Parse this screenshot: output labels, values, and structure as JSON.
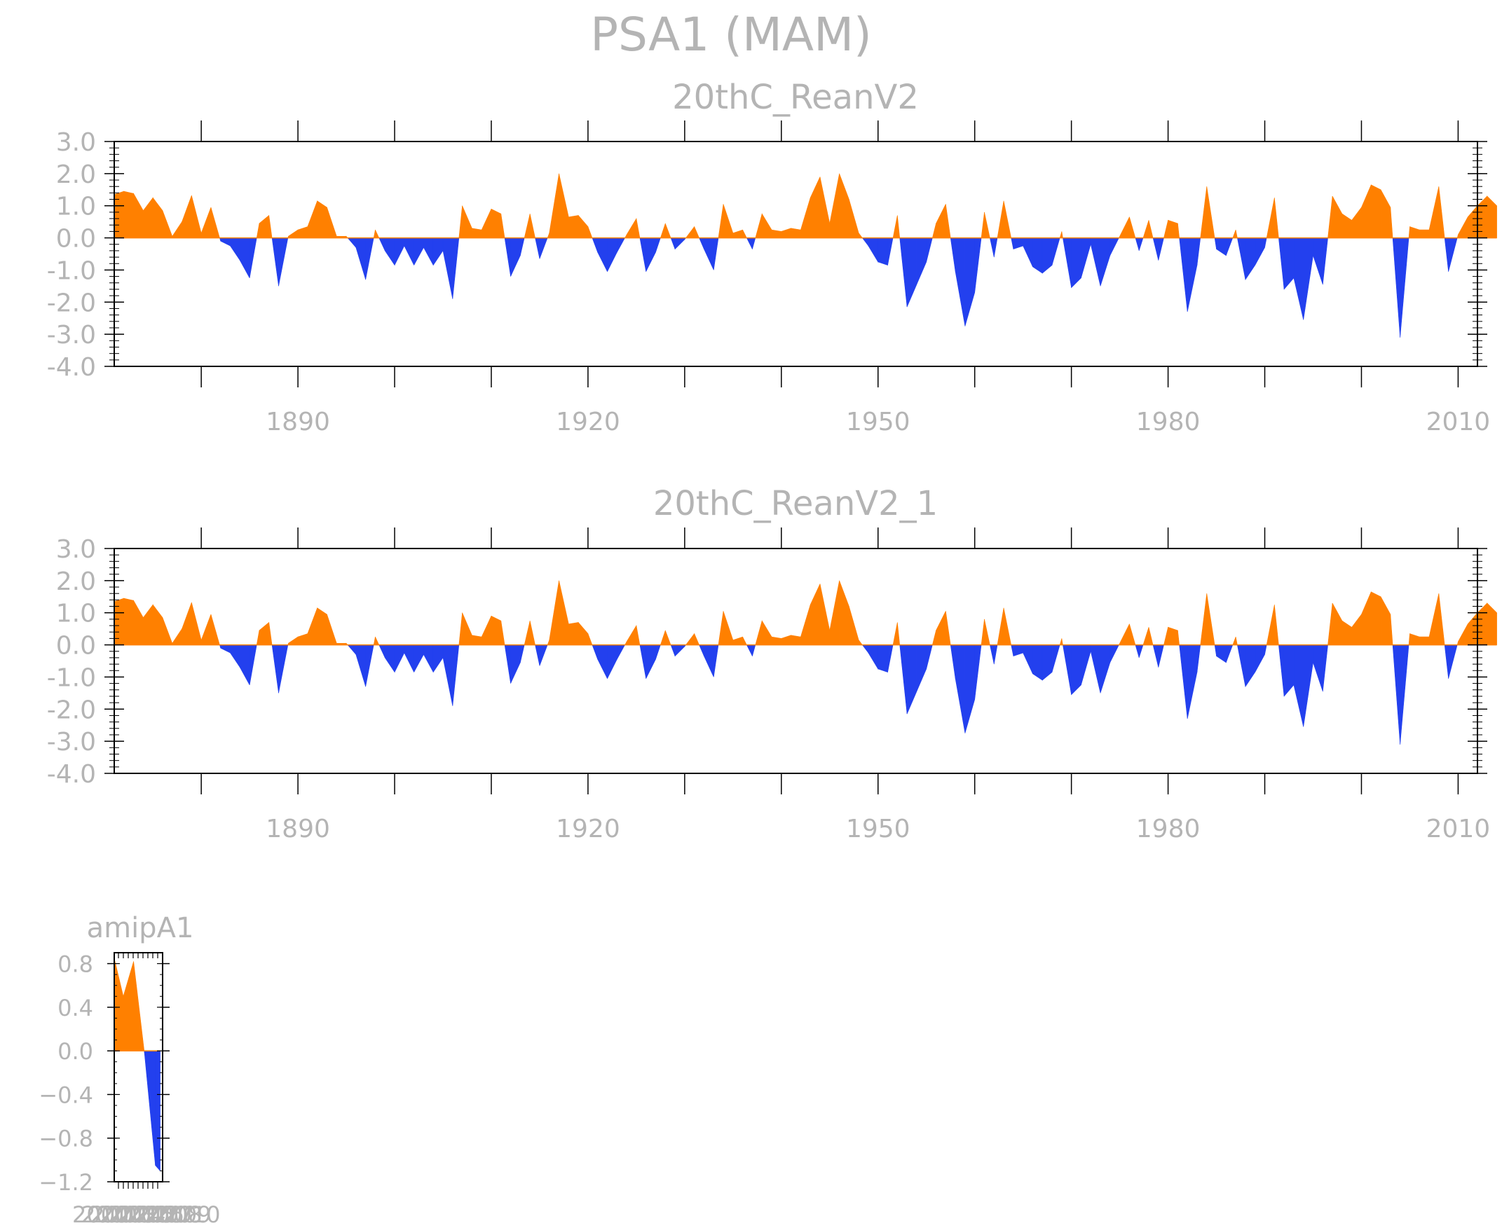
{
  "title": "PSA1 (MAM)",
  "colors": {
    "positive": "#ff8000",
    "negative": "#2340ee",
    "axis": "#000000",
    "text": "#b4b4b4"
  },
  "chart_data": [
    {
      "type": "area",
      "title": "20thC_ReanV2",
      "xlim": [
        1871,
        2012
      ],
      "ylim": [
        -4.0,
        3.0
      ],
      "ytick_labels": [
        "3.0",
        "2.0",
        "1.0",
        "0.0",
        "-1.0",
        "-2.0",
        "-3.0",
        "-4.0"
      ],
      "xtick_labels": [
        "1890",
        "1920",
        "1950",
        "1980",
        "2010"
      ],
      "x_start": 1871,
      "values": [
        1.35,
        1.45,
        1.38,
        0.85,
        1.25,
        0.85,
        0.05,
        0.5,
        1.32,
        0.15,
        0.95,
        -0.1,
        -0.25,
        -0.7,
        -1.25,
        0.45,
        0.7,
        -1.5,
        0.05,
        0.25,
        0.35,
        1.15,
        0.95,
        0.05,
        0.05,
        -0.3,
        -1.3,
        0.25,
        -0.4,
        -0.85,
        -0.25,
        -0.85,
        -0.3,
        -0.85,
        -0.4,
        -1.9,
        1.0,
        0.3,
        0.25,
        0.9,
        0.75,
        -1.2,
        -0.55,
        0.75,
        -0.65,
        0.15,
        2.0,
        0.65,
        0.7,
        0.35,
        -0.45,
        -1.05,
        -0.45,
        0.1,
        0.6,
        -1.05,
        -0.45,
        0.45,
        -0.35,
        -0.05,
        0.35,
        -0.35,
        -1.0,
        1.05,
        0.15,
        0.25,
        -0.35,
        0.75,
        0.25,
        0.2,
        0.3,
        0.25,
        1.25,
        1.9,
        0.45,
        2.0,
        1.2,
        0.15,
        -0.25,
        -0.75,
        -0.85,
        0.7,
        -2.15,
        -1.45,
        -0.75,
        0.45,
        1.05,
        -1.05,
        -2.75,
        -1.7,
        0.8,
        -0.6,
        1.15,
        -0.35,
        -0.25,
        -0.9,
        -1.1,
        -0.85,
        0.2,
        -1.55,
        -1.25,
        -0.2,
        -1.5,
        -0.55,
        0.05,
        0.65,
        -0.4,
        0.55,
        -0.7,
        0.55,
        0.45,
        -2.3,
        -0.85,
        1.6,
        -0.35,
        -0.55,
        0.25,
        -1.3,
        -0.85,
        -0.3,
        1.25,
        -1.6,
        -1.25,
        -2.55,
        -0.55,
        -1.45,
        1.3,
        0.75,
        0.55,
        0.95,
        1.65,
        1.5,
        0.95,
        -3.1,
        0.35,
        0.25,
        0.25,
        1.6,
        -1.05,
        0.1,
        0.65,
        1.0,
        1.3,
        1.0
      ]
    },
    {
      "type": "area",
      "title": "20thC_ReanV2_1",
      "xlim": [
        1871,
        2012
      ],
      "ylim": [
        -4.0,
        3.0
      ],
      "ytick_labels": [
        "3.0",
        "2.0",
        "1.0",
        "0.0",
        "-1.0",
        "-2.0",
        "-3.0",
        "-4.0"
      ],
      "xtick_labels": [
        "1890",
        "1920",
        "1950",
        "1980",
        "2010"
      ],
      "x_start": 1871,
      "values": [
        1.35,
        1.45,
        1.38,
        0.85,
        1.25,
        0.85,
        0.05,
        0.5,
        1.32,
        0.15,
        0.95,
        -0.1,
        -0.25,
        -0.7,
        -1.25,
        0.45,
        0.7,
        -1.5,
        0.05,
        0.25,
        0.35,
        1.15,
        0.95,
        0.05,
        0.05,
        -0.3,
        -1.3,
        0.25,
        -0.4,
        -0.85,
        -0.25,
        -0.85,
        -0.3,
        -0.85,
        -0.4,
        -1.9,
        1.0,
        0.3,
        0.25,
        0.9,
        0.75,
        -1.2,
        -0.55,
        0.75,
        -0.65,
        0.15,
        2.0,
        0.65,
        0.7,
        0.35,
        -0.45,
        -1.05,
        -0.45,
        0.1,
        0.6,
        -1.05,
        -0.45,
        0.45,
        -0.35,
        -0.05,
        0.35,
        -0.35,
        -1.0,
        1.05,
        0.15,
        0.25,
        -0.35,
        0.75,
        0.25,
        0.2,
        0.3,
        0.25,
        1.25,
        1.9,
        0.45,
        2.0,
        1.2,
        0.15,
        -0.25,
        -0.75,
        -0.85,
        0.7,
        -2.15,
        -1.45,
        -0.75,
        0.45,
        1.05,
        -1.05,
        -2.75,
        -1.7,
        0.8,
        -0.6,
        1.15,
        -0.35,
        -0.25,
        -0.9,
        -1.1,
        -0.85,
        0.2,
        -1.55,
        -1.25,
        -0.2,
        -1.5,
        -0.55,
        0.05,
        0.65,
        -0.4,
        0.55,
        -0.7,
        0.55,
        0.45,
        -2.3,
        -0.85,
        1.6,
        -0.35,
        -0.55,
        0.25,
        -1.3,
        -0.85,
        -0.3,
        1.25,
        -1.6,
        -1.25,
        -2.55,
        -0.55,
        -1.45,
        1.3,
        0.75,
        0.55,
        0.95,
        1.65,
        1.5,
        0.95,
        -3.1,
        0.35,
        0.25,
        0.25,
        1.6,
        -1.05,
        0.1,
        0.65,
        1.0,
        1.3,
        1.0
      ]
    },
    {
      "type": "area",
      "title": "amipA1",
      "xlim": [
        2000,
        2004
      ],
      "ylim": [
        -1.2,
        0.9
      ],
      "ytick_labels": [
        "0.8",
        "0.4",
        "0.0",
        "−0.4",
        "−0.8",
        "−1.2"
      ],
      "xtick_labels": [
        "2000",
        "2001",
        "2002",
        "2003",
        "2004",
        "2005",
        "2006",
        "2007",
        "2008",
        "2009",
        "2010"
      ],
      "x": [
        2000.0,
        2000.75,
        2001.6,
        2002.5,
        2003.4,
        2003.8
      ],
      "values": [
        0.85,
        0.5,
        0.82,
        -0.02,
        -1.05,
        -1.1
      ]
    }
  ]
}
